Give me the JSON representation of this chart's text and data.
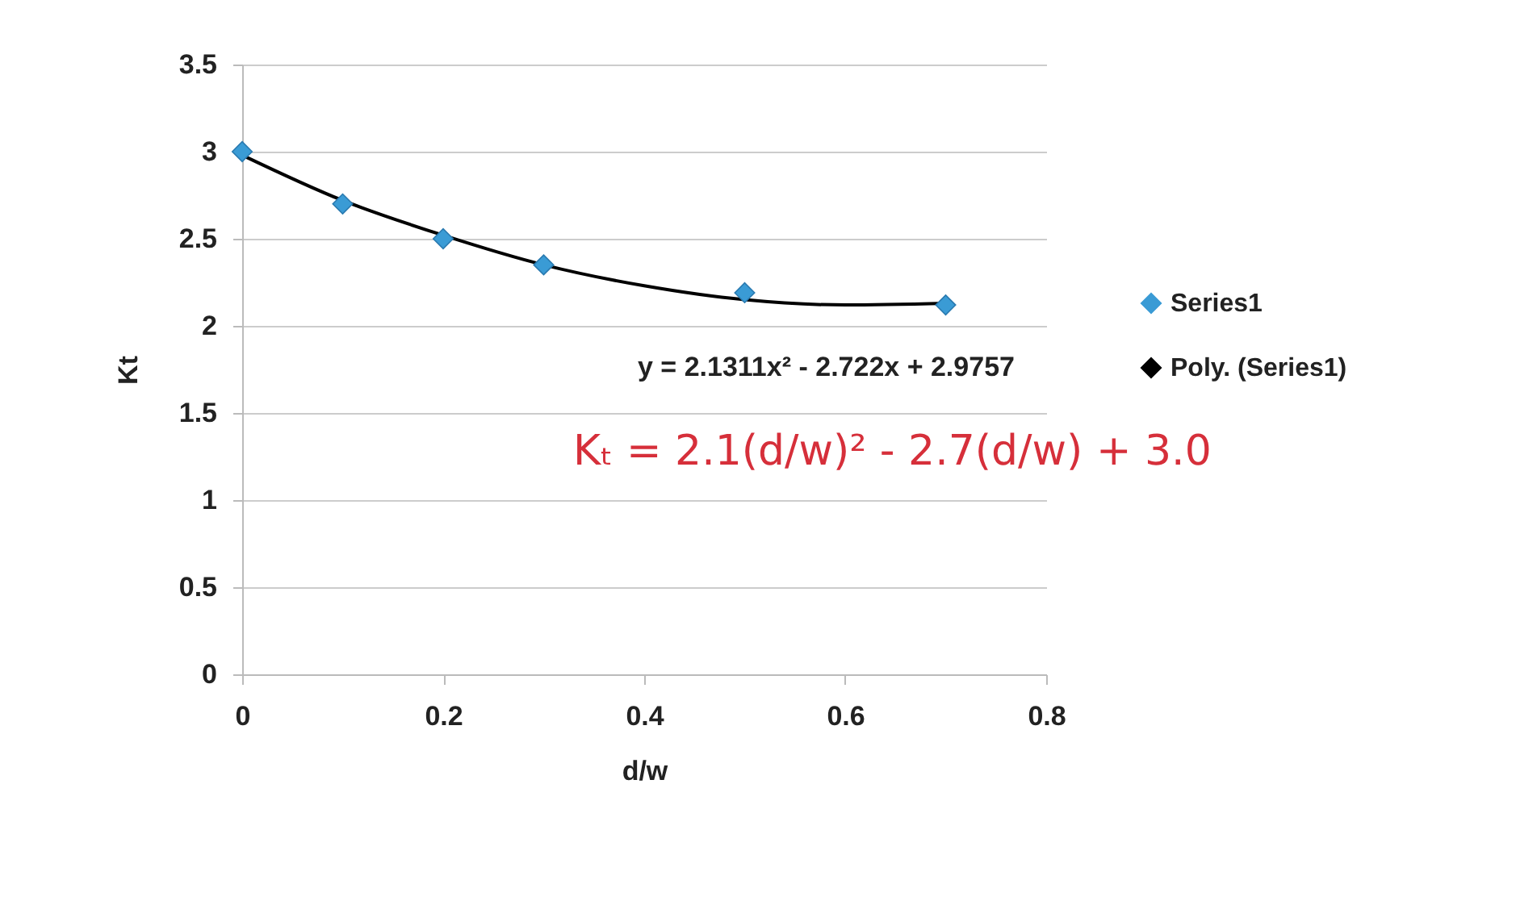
{
  "chart_data": {
    "type": "scatter",
    "xlabel": "d/w",
    "ylabel": "Kt",
    "xlim": [
      0,
      0.8
    ],
    "xticks": [
      0,
      0.2,
      0.4,
      0.6,
      0.8
    ],
    "ylim": [
      0,
      3.5
    ],
    "yticks": [
      0,
      0.5,
      1,
      1.5,
      2,
      2.5,
      3,
      3.5
    ],
    "grid": "y",
    "legend": "right",
    "marker": "diamond",
    "series": [
      {
        "name": "Series1",
        "color": "#3a9bd5",
        "x": [
          0,
          0.1,
          0.2,
          0.3,
          0.5,
          0.7
        ],
        "values": [
          3.0,
          2.7,
          2.5,
          2.35,
          2.19,
          2.12
        ]
      },
      {
        "name": "Poly. (Series1)",
        "type": "line",
        "marker": "none",
        "color": "#000000",
        "x": [
          0,
          0.1,
          0.2,
          0.3,
          0.4,
          0.5,
          0.6,
          0.7
        ],
        "values": [
          2.98,
          2.72,
          2.52,
          2.35,
          2.23,
          2.15,
          2.12,
          2.13
        ]
      }
    ],
    "annotations": [
      "y = 2.1311x² - 2.722x + 2.9757",
      "Kₜ = 2.1(d/w)² - 2.7(d/w) + 3.0"
    ]
  }
}
